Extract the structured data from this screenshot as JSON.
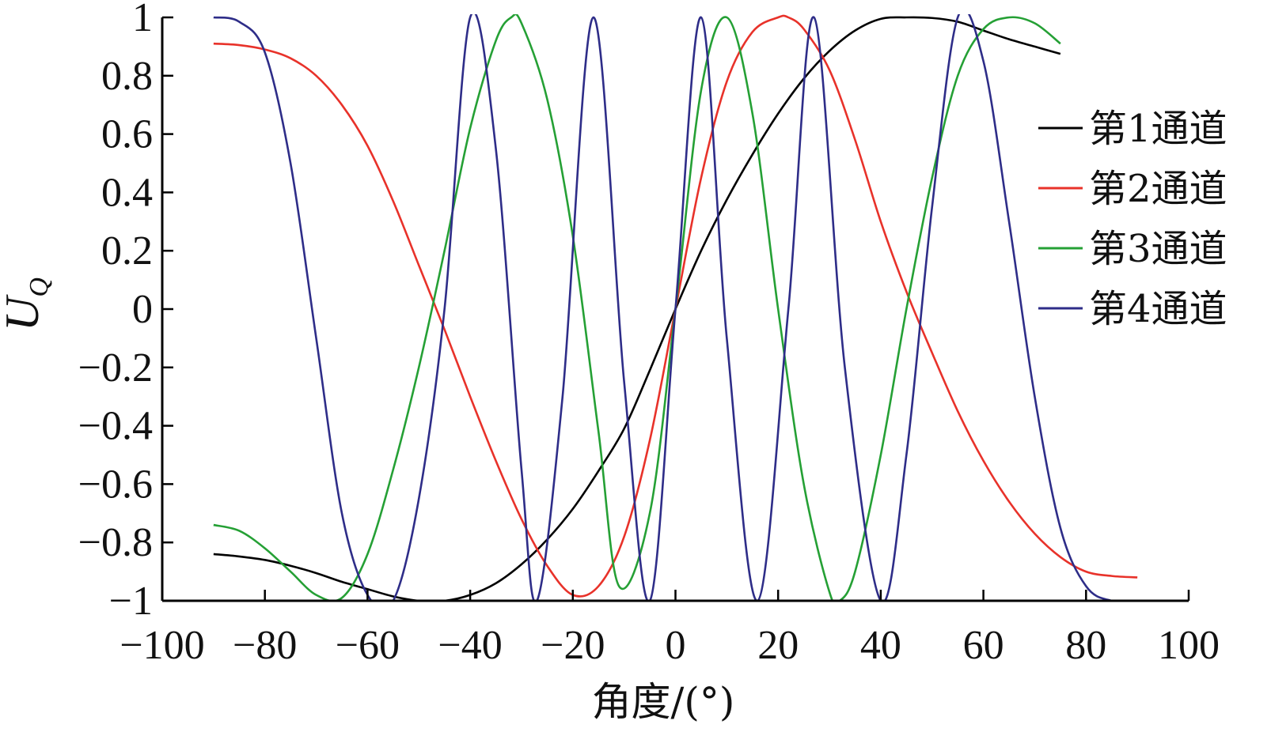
{
  "chart_data": {
    "type": "line",
    "title": "",
    "xlabel": "角度/(°)",
    "ylabel": "U",
    "ylabel_subscript": "Q",
    "xlim": [
      -100,
      100
    ],
    "ylim": [
      -1,
      1
    ],
    "x_ticks": [
      "−100",
      "−80",
      "−60",
      "−40",
      "−20",
      "0",
      "20",
      "40",
      "60",
      "80",
      "100"
    ],
    "y_ticks": [
      "1",
      "0.8",
      "0.6",
      "0.4",
      "0.2",
      "0",
      "−0.2",
      "−0.4",
      "−0.6",
      "−0.8",
      "−1"
    ],
    "grid": false,
    "legend_position": "right",
    "series": [
      {
        "name": "第1通道",
        "color": "#000000",
        "x": [
          -90,
          -85,
          -80,
          -75,
          -70,
          -65,
          -60,
          -55,
          -50,
          -45,
          -40,
          -35,
          -30,
          -25,
          -20,
          -15,
          -10,
          -5,
          0,
          5,
          10,
          15,
          20,
          25,
          30,
          35,
          40,
          45,
          50,
          55,
          60,
          65,
          70,
          75
        ],
        "y": [
          -0.84,
          -0.848,
          -0.86,
          -0.88,
          -0.905,
          -0.935,
          -0.96,
          -0.985,
          -1.0,
          -1.0,
          -0.98,
          -0.94,
          -0.875,
          -0.79,
          -0.685,
          -0.555,
          -0.41,
          -0.21,
          0.0,
          0.2,
          0.375,
          0.53,
          0.67,
          0.79,
          0.885,
          0.955,
          0.995,
          1.0,
          0.998,
          0.985,
          0.955,
          0.925,
          0.9,
          0.875
        ]
      },
      {
        "name": "第2通道",
        "color": "#e8322a",
        "x": [
          -90,
          -85,
          -80,
          -75,
          -70,
          -65,
          -60,
          -55,
          -50,
          -45,
          -40,
          -35,
          -30,
          -25,
          -20,
          -15,
          -10,
          -5,
          0,
          5,
          10,
          15,
          20,
          22,
          25,
          30,
          35,
          40,
          45,
          50,
          55,
          60,
          65,
          70,
          75,
          80,
          85,
          90
        ],
        "y": [
          0.91,
          0.905,
          0.89,
          0.86,
          0.8,
          0.7,
          0.56,
          0.37,
          0.15,
          -0.07,
          -0.3,
          -0.52,
          -0.72,
          -0.88,
          -0.98,
          -0.95,
          -0.78,
          -0.45,
          0.0,
          0.45,
          0.78,
          0.95,
          1.0,
          1.0,
          0.96,
          0.82,
          0.58,
          0.3,
          0.06,
          -0.15,
          -0.35,
          -0.52,
          -0.66,
          -0.77,
          -0.85,
          -0.9,
          -0.915,
          -0.92
        ]
      },
      {
        "name": "第3通道",
        "color": "#25a035",
        "x": [
          -90,
          -85,
          -80,
          -75,
          -70,
          -65,
          -60,
          -55,
          -50,
          -45,
          -40,
          -35,
          -32,
          -30,
          -25,
          -20,
          -15,
          -11,
          -5,
          0,
          5,
          10,
          15,
          20,
          25,
          30,
          32,
          35,
          40,
          45,
          50,
          55,
          60,
          65,
          70,
          75
        ],
        "y": [
          -0.74,
          -0.76,
          -0.82,
          -0.9,
          -0.98,
          -0.99,
          -0.84,
          -0.55,
          -0.2,
          0.2,
          0.62,
          0.92,
          1.0,
          0.98,
          0.72,
          0.25,
          -0.42,
          -0.95,
          -0.7,
          0.0,
          0.75,
          1.0,
          0.67,
          0.0,
          -0.6,
          -0.97,
          -1.0,
          -0.9,
          -0.5,
          0.0,
          0.45,
          0.8,
          0.96,
          1.0,
          0.98,
          0.91
        ]
      },
      {
        "name": "第4通道",
        "color": "#2e2d88",
        "x": [
          -90,
          -85,
          -80,
          -75,
          -70,
          -65,
          -60,
          -55,
          -50,
          -45,
          -40,
          -35,
          -30,
          -27,
          -22,
          -16,
          -10,
          -5,
          0,
          5,
          10,
          16,
          22,
          27,
          33,
          40,
          45,
          50,
          55,
          60,
          65,
          70,
          75,
          80,
          85,
          90
        ],
        "y": [
          1.0,
          0.985,
          0.88,
          0.5,
          -0.1,
          -0.7,
          -0.98,
          -1.0,
          -0.65,
          0.0,
          1.0,
          0.55,
          -0.55,
          -1.0,
          -0.3,
          1.0,
          -0.25,
          -1.0,
          0.0,
          1.0,
          -0.1,
          -1.0,
          0.0,
          1.0,
          -0.2,
          -1.0,
          -0.5,
          0.35,
          1.0,
          0.85,
          0.3,
          -0.3,
          -0.75,
          -0.95,
          -1.0,
          -1.0
        ]
      }
    ]
  }
}
